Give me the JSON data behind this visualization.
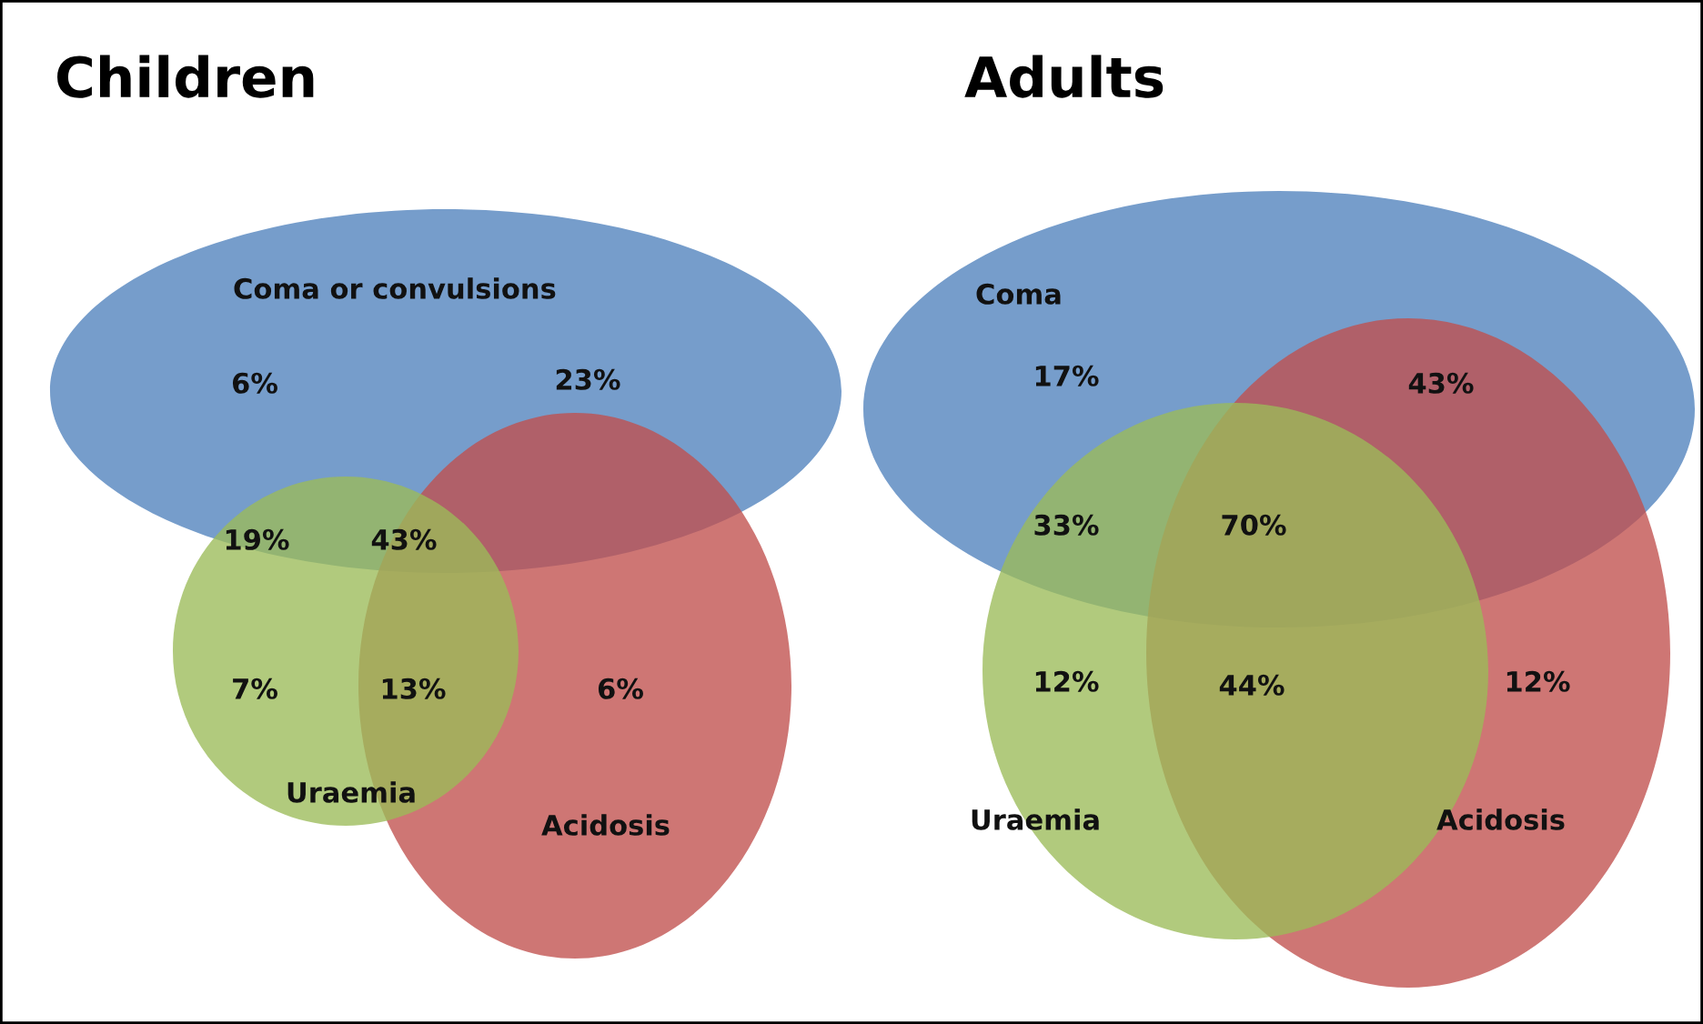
{
  "chart_data": [
    {
      "type": "other",
      "title": "Children",
      "annotations": [
        "Coma or convulsions",
        "Acidosis",
        "Uraemia"
      ],
      "values": [
        6,
        23,
        19,
        43,
        7,
        13,
        6
      ],
      "value_labels": [
        "6%",
        "23%",
        "19%",
        "43%",
        "7%",
        "13%",
        "6%"
      ]
    },
    {
      "type": "other",
      "title": "Adults",
      "annotations": [
        "Coma",
        "Acidosis",
        "Uraemia"
      ],
      "values": [
        17,
        43,
        33,
        70,
        12,
        44,
        12
      ],
      "value_labels": [
        "17%",
        "43%",
        "33%",
        "70%",
        "12%",
        "44%",
        "12%"
      ]
    }
  ]
}
